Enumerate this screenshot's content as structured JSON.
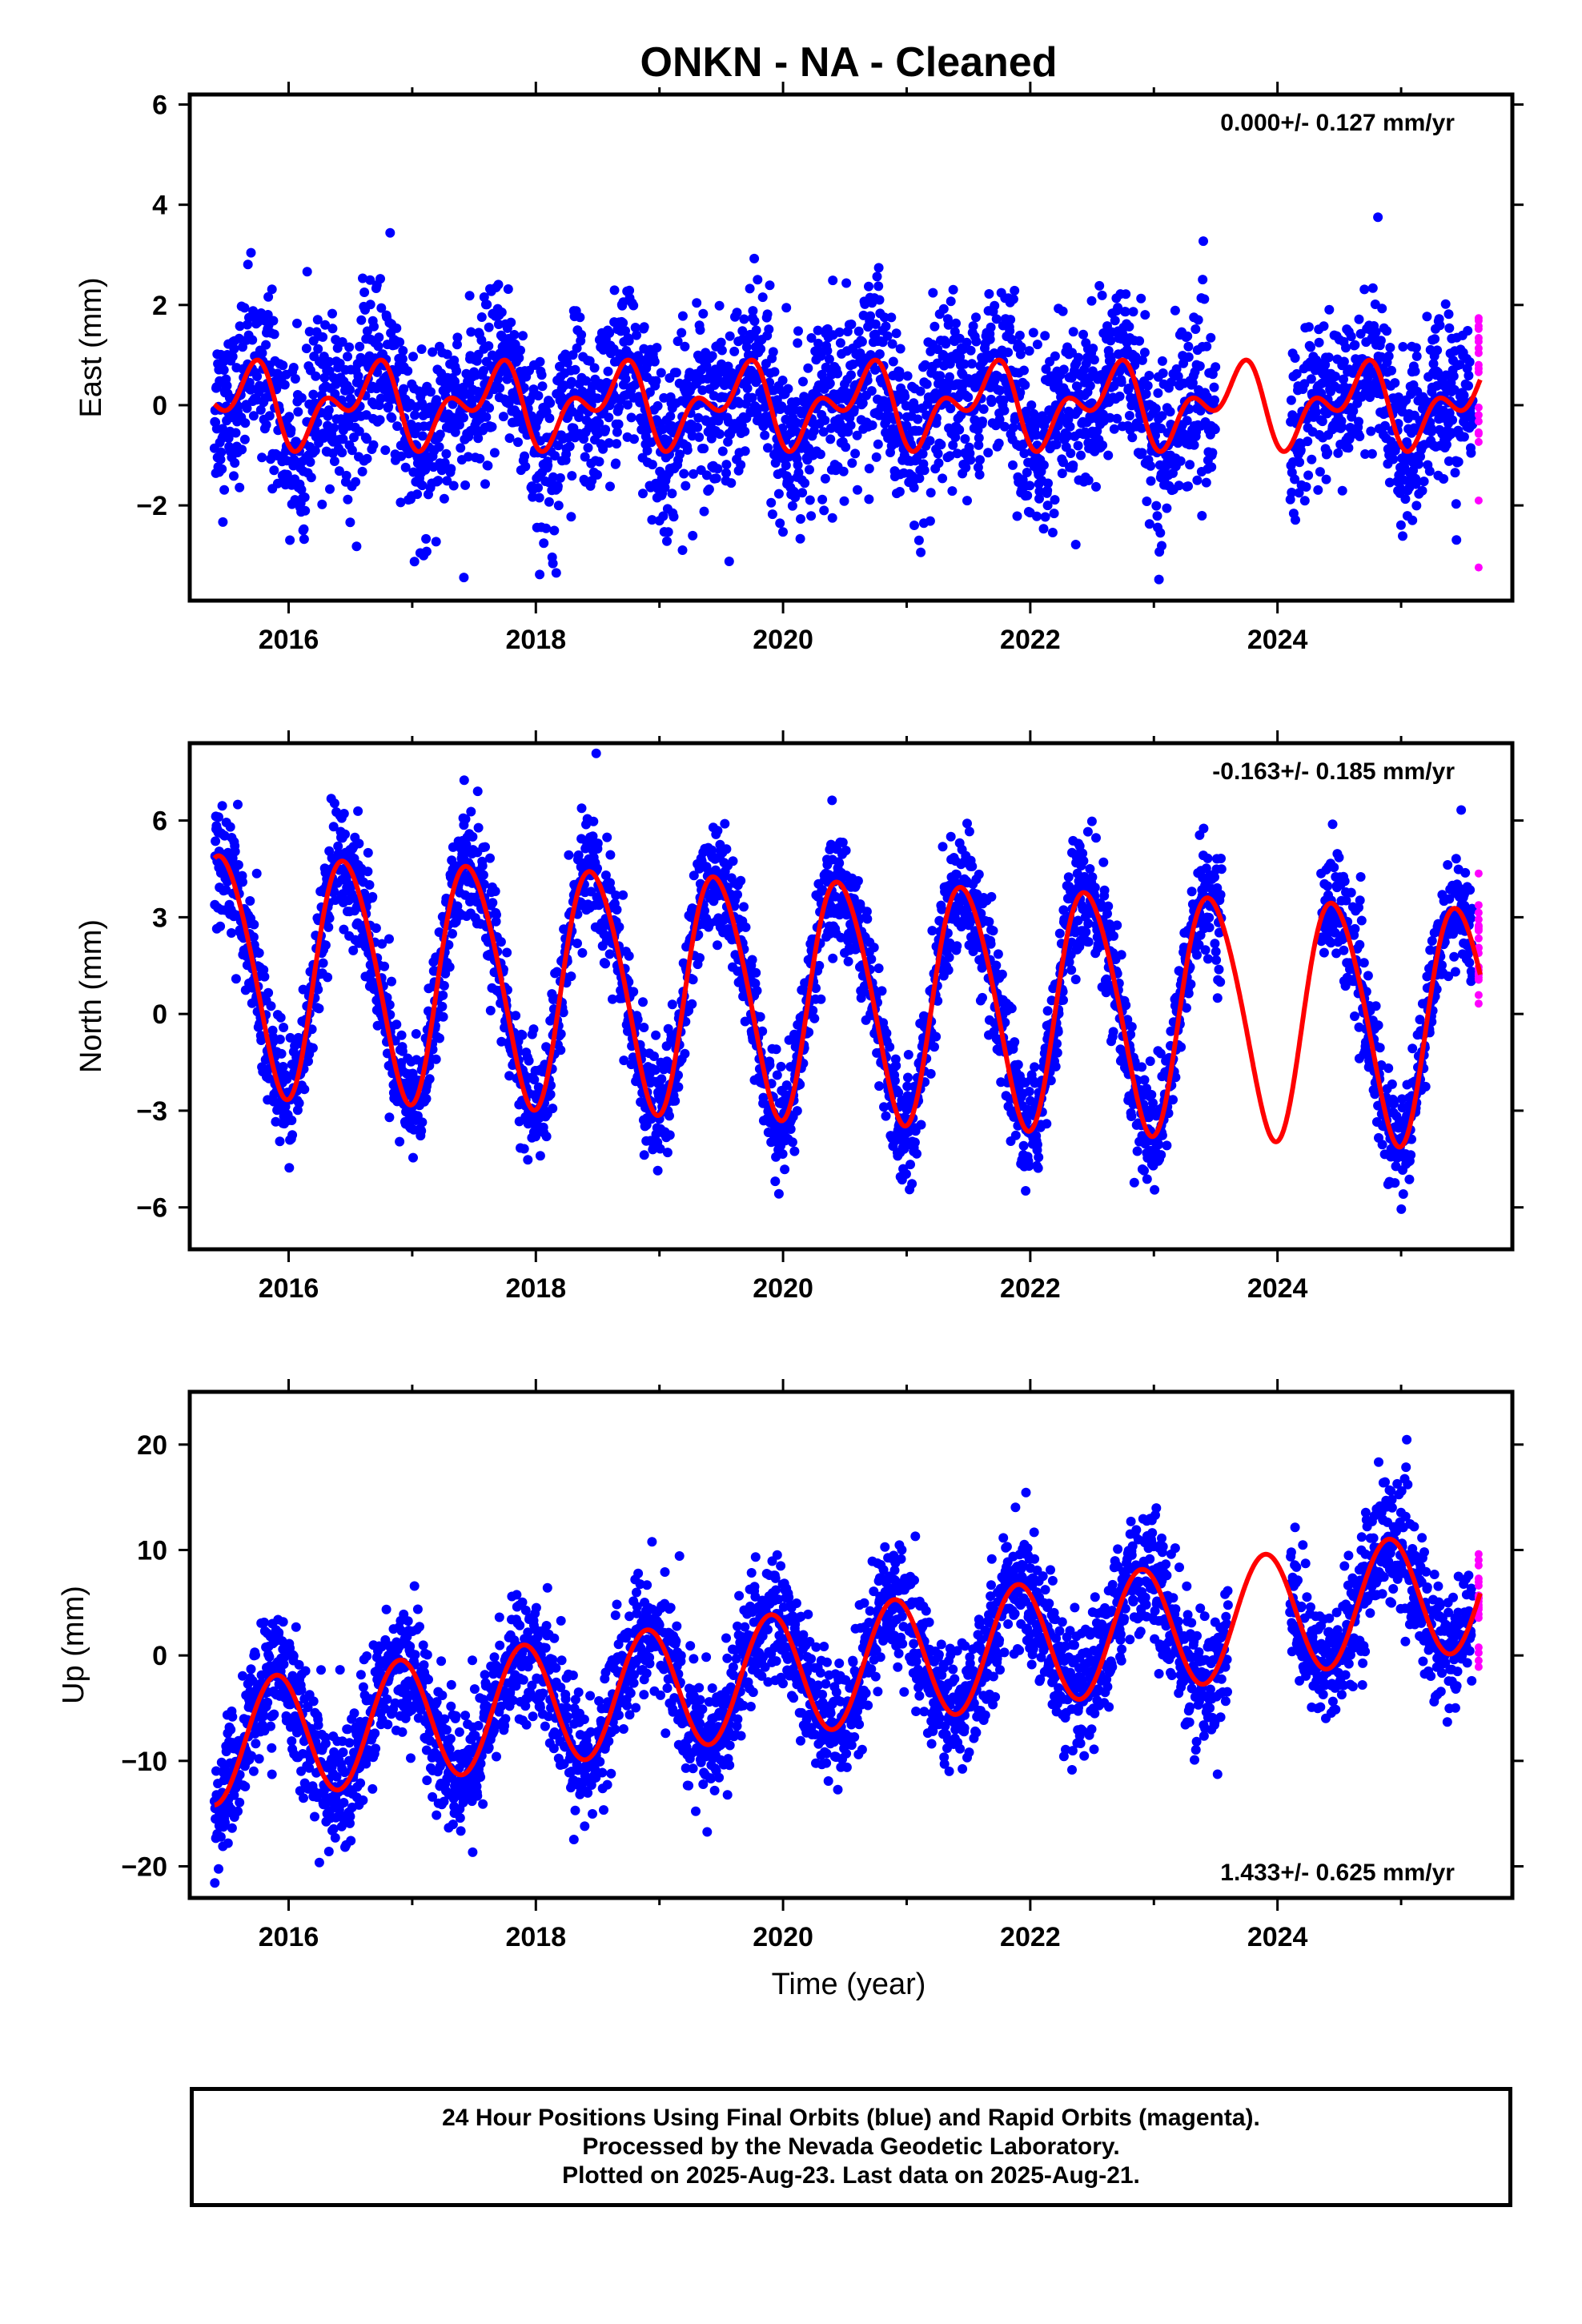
{
  "title": "ONKN  - NA - Cleaned",
  "x_axis_label": "Time (year)",
  "footer": {
    "line1": "24 Hour Positions Using Final Orbits (blue) and Rapid Orbits (magenta).",
    "line2": "Processed by the Nevada Geodetic Laboratory.",
    "line3": "Plotted on 2025-Aug-23. Last data on 2025-Aug-21."
  },
  "colors": {
    "final": "#0000ff",
    "rapid": "#ff00ff",
    "model": "#ff0000"
  },
  "chart_data": [
    {
      "type": "scatter",
      "name": "east",
      "ylabel": "East (mm)",
      "rate_label": "0.000+/- 0.127 mm/yr",
      "rate_position": "top-right",
      "xlim": [
        2015.2,
        2025.9
      ],
      "ylim": [
        -3.9,
        6.2
      ],
      "yticks": [
        -2,
        0,
        2,
        4,
        6
      ],
      "xticks": [
        2016,
        2018,
        2020,
        2022,
        2024
      ],
      "data_range": [
        2015.4,
        2025.58
      ],
      "gaps": [
        [
          2023.5,
          2024.1
        ]
      ],
      "rapid_range": [
        2025.53,
        2025.64
      ],
      "noise_sd": 0.85,
      "model": {
        "offset": 0.0,
        "trend": 0.0,
        "annual_cos": -0.35,
        "annual_sin": -0.45,
        "semi_cos": -0.45,
        "semi_sin": -0.15
      }
    },
    {
      "type": "scatter",
      "name": "north",
      "ylabel": "North (mm)",
      "rate_label": "-0.163+/- 0.185 mm/yr",
      "rate_position": "top-right",
      "xlim": [
        2015.2,
        2025.9
      ],
      "ylim": [
        -7.3,
        8.4
      ],
      "yticks": [
        -6,
        -3,
        0,
        3,
        6
      ],
      "xticks": [
        2016,
        2018,
        2020,
        2022,
        2024
      ],
      "data_range": [
        2015.4,
        2025.58
      ],
      "gaps": [
        [
          2023.55,
          2024.35
        ]
      ],
      "rapid_range": [
        2025.53,
        2025.64
      ],
      "noise_sd": 0.9,
      "model": {
        "offset": 0.6,
        "trend": -0.163,
        "annual_cos": -3.6,
        "annual_sin": 0.8,
        "semi_cos": -0.3,
        "semi_sin": -0.2
      }
    },
    {
      "type": "scatter",
      "name": "up",
      "ylabel": "Up (mm)",
      "rate_label": "1.433+/- 0.625 mm/yr",
      "rate_position": "bottom-right",
      "xlim": [
        2015.2,
        2025.9
      ],
      "ylim": [
        -23,
        25
      ],
      "yticks": [
        -20,
        -10,
        0,
        10,
        20
      ],
      "xticks": [
        2016,
        2018,
        2020,
        2022,
        2024
      ],
      "data_range": [
        2015.4,
        2025.58
      ],
      "gaps": [
        [
          2023.6,
          2024.1
        ]
      ],
      "rapid_range": [
        2025.53,
        2025.64
      ],
      "noise_sd": 3.0,
      "model": {
        "offset": -1.8,
        "trend": 1.433,
        "annual_cos": 4.7,
        "annual_sin": -3.4,
        "semi_cos": 0.0,
        "semi_sin": 0.0
      }
    }
  ]
}
